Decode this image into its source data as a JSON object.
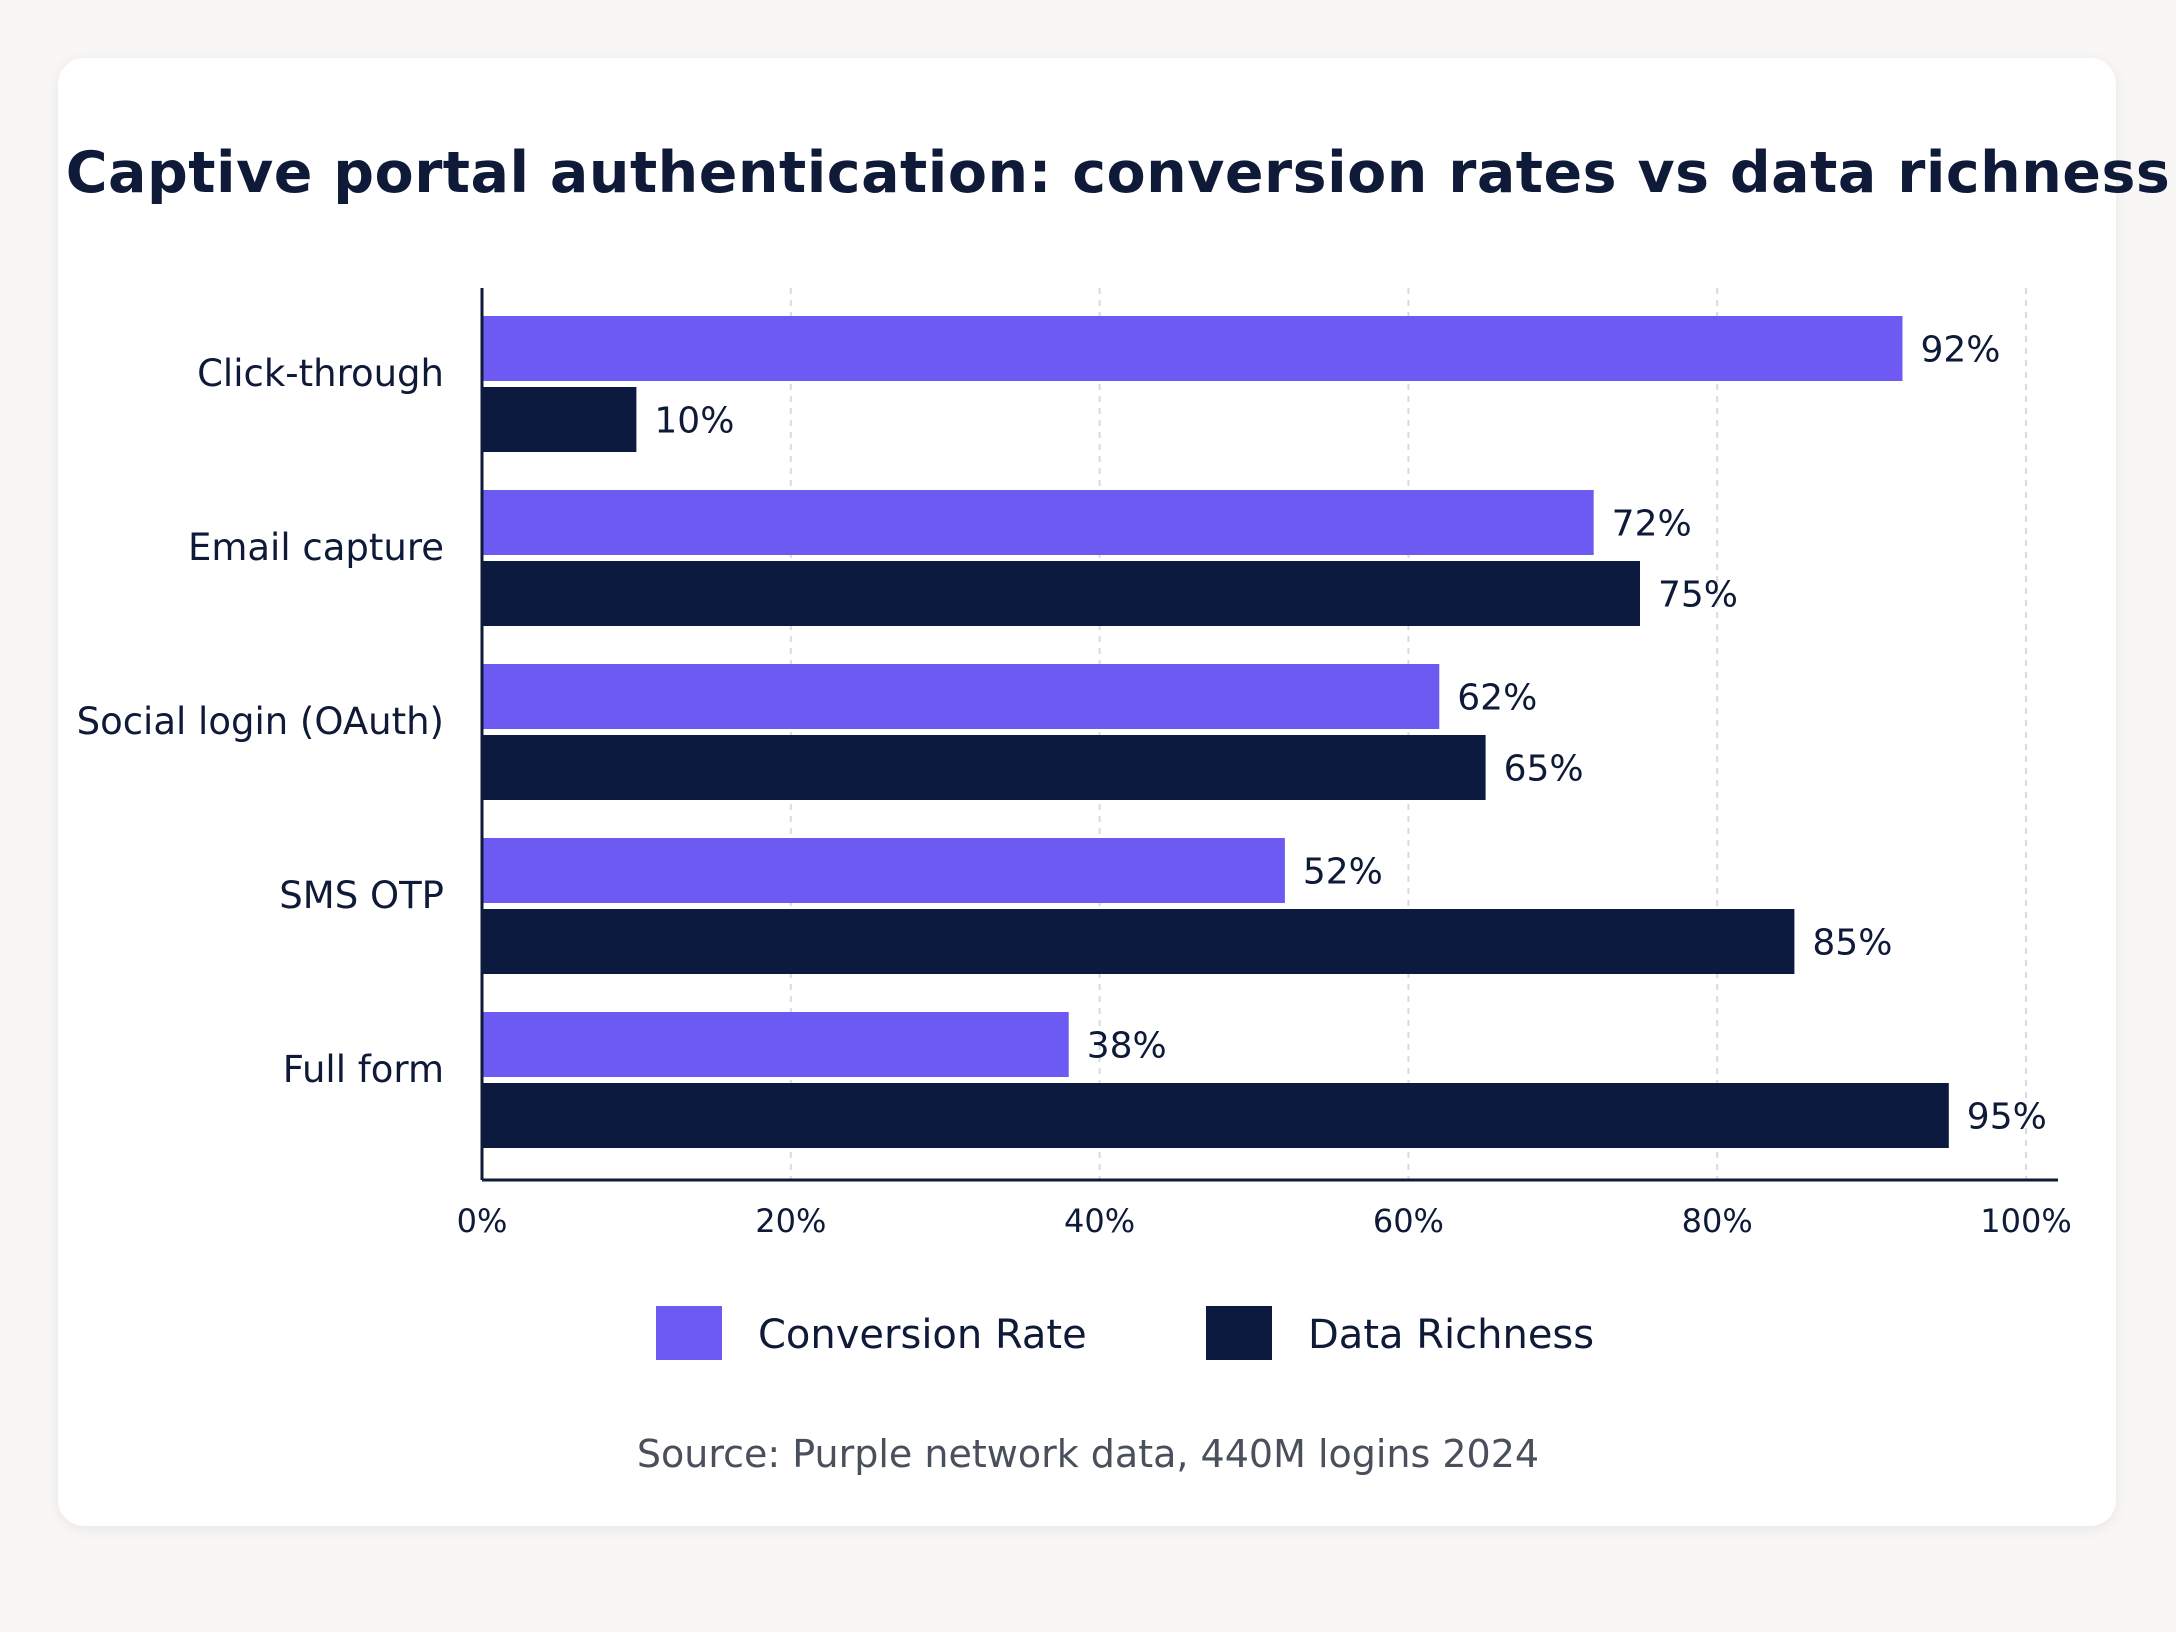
{
  "chart_data": {
    "type": "bar",
    "orientation": "horizontal",
    "title": "Captive portal authentication: conversion rates vs data richness",
    "categories": [
      "Click-through",
      "Email capture",
      "Social login (OAuth)",
      "SMS OTP",
      "Full form"
    ],
    "series": [
      {
        "name": "Conversion Rate",
        "color": "#6c5af3",
        "values": [
          92,
          72,
          62,
          52,
          38
        ]
      },
      {
        "name": "Data Richness",
        "color": "#0d1a40",
        "values": [
          10,
          75,
          65,
          85,
          95
        ]
      }
    ],
    "value_labels": {
      "Conversion Rate": [
        "92%",
        "72%",
        "62%",
        "52%",
        "38%"
      ],
      "Data Richness": [
        "10%",
        "75%",
        "65%",
        "85%",
        "95%"
      ]
    },
    "xlim": [
      0,
      100
    ],
    "xticks": [
      0,
      20,
      40,
      60,
      80,
      100
    ],
    "xtick_labels": [
      "0%",
      "20%",
      "40%",
      "60%",
      "80%",
      "100%"
    ],
    "grid": "vertical dashed",
    "legend_placement": "bottom-center",
    "source": "Source:  Purple network data, 440M logins 2024"
  }
}
